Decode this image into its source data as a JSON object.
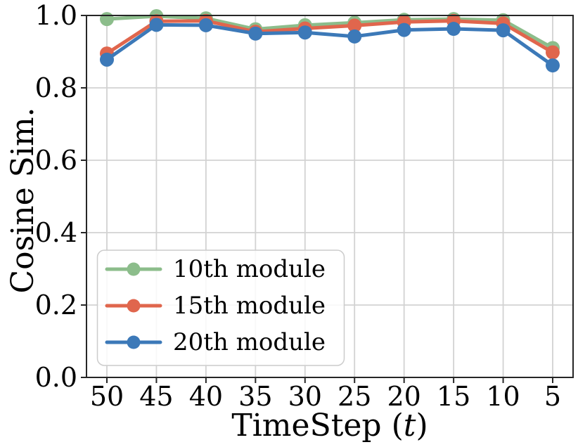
{
  "figure": {
    "background": "#ffffff",
    "xlabel_prefix": "TimeStep (",
    "xlabel_var": "t",
    "xlabel_suffix": ")"
  },
  "chart_data": {
    "type": "line",
    "title": "",
    "xlabel": "TimeStep (t)",
    "ylabel": "Cosine Sim.",
    "x_tick_labels": [
      "50",
      "45",
      "40",
      "35",
      "30",
      "25",
      "20",
      "15",
      "10",
      "5"
    ],
    "x_axis_reversed": true,
    "ylim": [
      0.0,
      1.0
    ],
    "y_ticks": [
      0.0,
      0.2,
      0.4,
      0.6,
      0.8,
      1.0
    ],
    "y_tick_labels": [
      "0.0",
      "0.2",
      "0.4",
      "0.6",
      "0.8",
      "1.0"
    ],
    "grid": true,
    "grid_color": "#d2d2d2",
    "spine_color": "#262626",
    "legend_position": "lower left",
    "series": [
      {
        "name": "10th module",
        "color": "#8cbd8b",
        "values": [
          0.99,
          0.998,
          0.992,
          0.962,
          0.973,
          0.98,
          0.988,
          0.99,
          0.987,
          0.91
        ]
      },
      {
        "name": "15th module",
        "color": "#e0664d",
        "values": [
          0.895,
          0.984,
          0.985,
          0.955,
          0.964,
          0.972,
          0.982,
          0.985,
          0.978,
          0.898
        ]
      },
      {
        "name": "20th module",
        "color": "#3c79b8",
        "values": [
          0.878,
          0.974,
          0.973,
          0.95,
          0.953,
          0.942,
          0.96,
          0.963,
          0.959,
          0.862
        ]
      }
    ]
  }
}
